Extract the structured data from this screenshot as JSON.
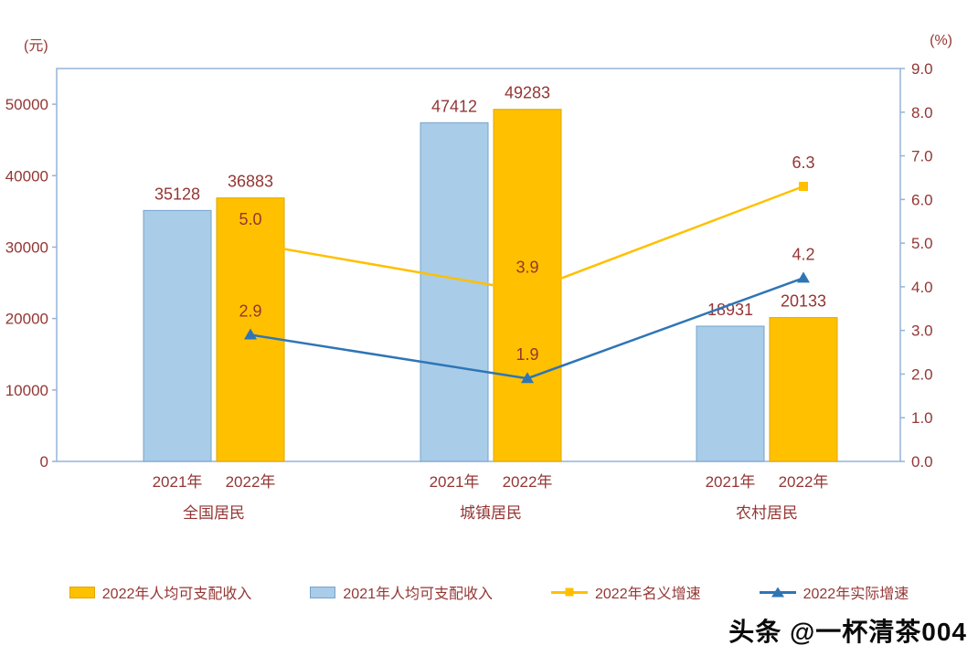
{
  "units": {
    "left": "(元)",
    "right": "(%)"
  },
  "watermark": "头条 @一杯清茶004",
  "chart_data": {
    "type": "bar+line combo",
    "categories": [
      "全国居民",
      "城镇居民",
      "农村居民"
    ],
    "x_tick_labels": [
      "2021年",
      "2022年"
    ],
    "bar_series": [
      {
        "name": "2021年人均可支配收入",
        "year_label": "2021年",
        "color": "#A9CCE9",
        "border": "#74A3CC",
        "values": [
          35128,
          47412,
          18931
        ]
      },
      {
        "name": "2022年人均可支配收入",
        "year_label": "2022年",
        "color": "#FFC000",
        "border": "#DFA700",
        "values": [
          36883,
          49283,
          20133
        ]
      }
    ],
    "line_series": [
      {
        "name": "2022年名义增速",
        "color": "#FFC000",
        "marker": "square",
        "values": [
          5.0,
          3.9,
          6.3
        ]
      },
      {
        "name": "2022年实际增速",
        "color": "#2E75B6",
        "marker": "triangle",
        "values": [
          2.9,
          1.9,
          4.2
        ]
      }
    ],
    "left_axis": {
      "label": "(元)",
      "ticks": [
        0,
        10000,
        20000,
        30000,
        40000,
        50000
      ],
      "max": 55000
    },
    "right_axis": {
      "label": "(%)",
      "ticks": [
        0,
        1,
        2,
        3,
        4,
        5,
        6,
        7,
        8,
        9
      ],
      "max": 9
    },
    "legend_order_note": "2022 bar, 2021 bar, nominal growth line, real growth line",
    "style": {
      "text_color": "#943634",
      "plot_border_color": "#95B3D7",
      "background": "#FFFFFF"
    }
  }
}
